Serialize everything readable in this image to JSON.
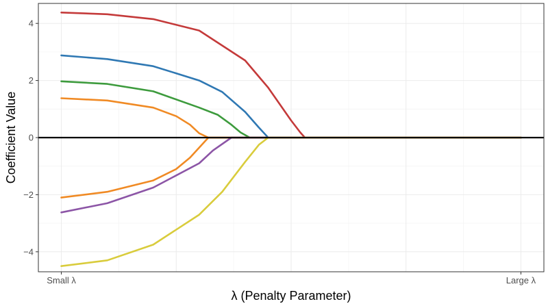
{
  "chart_data": {
    "type": "line",
    "title": "",
    "xlabel": "λ (Penalty Parameter)",
    "ylabel": "Coefficient Value",
    "x_tick_labels": [
      "Small λ",
      "Large λ"
    ],
    "y_ticks": [
      -4,
      -2,
      0,
      2,
      4
    ],
    "y_tick_labels": [
      "−4",
      "−2",
      "0",
      "2",
      "4"
    ],
    "ylim": [
      -4.7,
      4.7
    ],
    "xlim": [
      -0.05,
      1.05
    ],
    "grid": true,
    "legend": "none",
    "x_note": "x runs from Small λ (0) to Large λ (1)",
    "series": [
      {
        "color": "#c43a3a",
        "x": [
          0,
          0.1,
          0.2,
          0.3,
          0.4,
          0.45,
          0.5,
          0.52,
          0.53,
          0.55,
          0.6,
          0.7,
          0.8,
          0.9,
          1.0
        ],
        "values": [
          4.38,
          4.32,
          4.15,
          3.75,
          2.7,
          1.75,
          0.6,
          0.18,
          0,
          0,
          0,
          0,
          0,
          0,
          0
        ]
      },
      {
        "color": "#2f78b3",
        "x": [
          0,
          0.1,
          0.2,
          0.3,
          0.35,
          0.4,
          0.43,
          0.45,
          0.5,
          0.6,
          0.7,
          0.8,
          0.9,
          1.0
        ],
        "values": [
          2.88,
          2.75,
          2.5,
          2.0,
          1.6,
          0.9,
          0.35,
          0,
          0,
          0,
          0,
          0,
          0,
          0
        ]
      },
      {
        "color": "#3d9b3d",
        "x": [
          0,
          0.1,
          0.2,
          0.3,
          0.34,
          0.37,
          0.39,
          0.41,
          0.5,
          0.6,
          0.7,
          0.8,
          0.9,
          1.0
        ],
        "values": [
          1.97,
          1.88,
          1.62,
          1.05,
          0.8,
          0.45,
          0.18,
          0,
          0,
          0,
          0,
          0,
          0,
          0
        ]
      },
      {
        "color": "#f08a24",
        "x": [
          0,
          0.1,
          0.2,
          0.25,
          0.28,
          0.3,
          0.32,
          0.4,
          0.5,
          0.6,
          0.7,
          0.8,
          0.9,
          1.0
        ],
        "values": [
          1.38,
          1.3,
          1.05,
          0.75,
          0.45,
          0.15,
          0,
          0,
          0,
          0,
          0,
          0,
          0,
          0
        ]
      },
      {
        "color": "#f08a24",
        "x": [
          0,
          0.1,
          0.2,
          0.25,
          0.28,
          0.3,
          0.32,
          0.4,
          0.5,
          0.6,
          0.7,
          0.8,
          0.9,
          1.0
        ],
        "values": [
          -2.1,
          -1.9,
          -1.5,
          -1.1,
          -0.7,
          -0.35,
          0,
          0,
          0,
          0,
          0,
          0,
          0,
          0
        ]
      },
      {
        "color": "#8c55a6",
        "x": [
          0,
          0.1,
          0.2,
          0.3,
          0.33,
          0.37,
          0.4,
          0.45,
          0.5,
          0.6,
          0.7,
          0.8,
          0.9,
          1.0
        ],
        "values": [
          -2.62,
          -2.3,
          -1.75,
          -0.9,
          -0.45,
          0,
          0,
          0,
          0,
          0,
          0,
          0,
          0,
          0
        ]
      },
      {
        "color": "#d9cc3c",
        "x": [
          0,
          0.1,
          0.2,
          0.3,
          0.35,
          0.4,
          0.43,
          0.45,
          0.5,
          0.6,
          0.7,
          0.8,
          0.9,
          1.0
        ],
        "values": [
          -4.5,
          -4.3,
          -3.75,
          -2.7,
          -1.9,
          -0.85,
          -0.25,
          0,
          0,
          0,
          0,
          0,
          0,
          0
        ]
      }
    ]
  }
}
